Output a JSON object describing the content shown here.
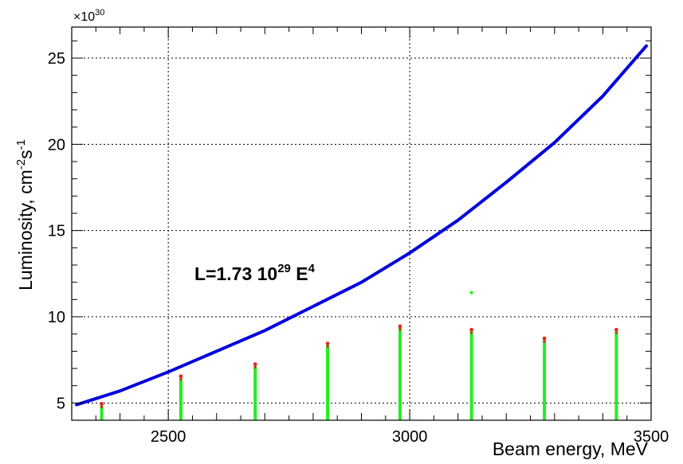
{
  "chart_data": {
    "type": "line",
    "title": "",
    "xlabel": "Beam energy, MeV",
    "ylabel": "Luminosity, cm",
    "ylabel_sup1": "-2",
    "ylabel_mid": "s",
    "ylabel_sup2": "-1",
    "y_multiplier_prefix": "×10",
    "y_multiplier_exp": "30",
    "xlim": [
      2300,
      3500
    ],
    "ylim": [
      4.0,
      26.8
    ],
    "x_ticks": [
      2500,
      3000,
      3500
    ],
    "y_ticks": [
      5,
      10,
      15,
      20,
      25
    ],
    "grid": true,
    "grid_style": "dotted",
    "annotation": {
      "prefix": "L=1.73 10",
      "sup1": "29",
      "mid": " E",
      "sup2": "4"
    },
    "fit_curve": {
      "name": "",
      "color": "#0000dd",
      "formula": "L = 1.73e29 * E^4 (E in GeV)",
      "x": [
        2310,
        2400,
        2500,
        2600,
        2700,
        2800,
        2900,
        3000,
        3100,
        3200,
        3300,
        3400,
        3490
      ],
      "y": [
        4.9,
        5.7,
        6.8,
        8.0,
        9.2,
        10.6,
        12.0,
        13.7,
        15.6,
        17.8,
        20.1,
        22.8,
        25.7
      ]
    },
    "measurements": {
      "point_color": "#22ee22",
      "outline_color": "#ee2222",
      "points": [
        {
          "x": 2362,
          "ymin": 4.0,
          "ymax": 5.0
        },
        {
          "x": 2526,
          "ymin": 4.0,
          "ymax": 6.6
        },
        {
          "x": 2680,
          "ymin": 4.0,
          "ymax": 7.3
        },
        {
          "x": 2830,
          "ymin": 4.0,
          "ymax": 8.5
        },
        {
          "x": 2980,
          "ymin": 4.0,
          "ymax": 9.5
        },
        {
          "x": 3128,
          "ymin": 4.0,
          "ymax": 9.3
        },
        {
          "x": 3279,
          "ymin": 4.0,
          "ymax": 8.8
        },
        {
          "x": 3428,
          "ymin": 4.0,
          "ymax": 9.3
        }
      ],
      "outliers": [
        {
          "x": 3128,
          "y": 11.4
        }
      ]
    }
  }
}
